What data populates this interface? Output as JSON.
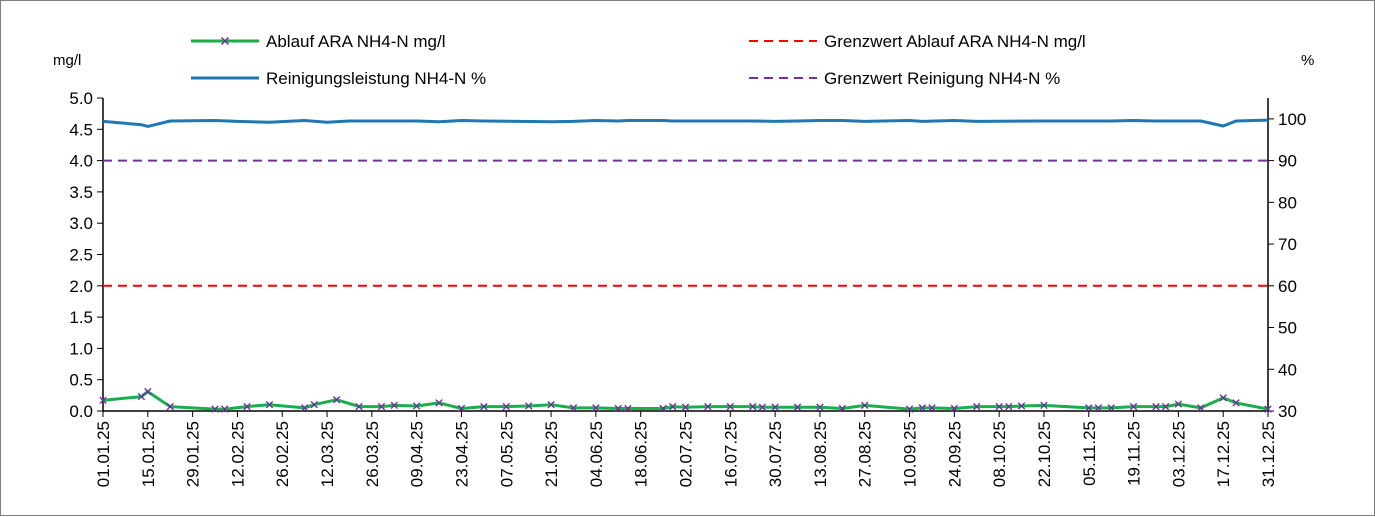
{
  "chart_data": {
    "type": "line",
    "title": "",
    "left_axis": {
      "label": "mg/l",
      "ylim": [
        0,
        5
      ],
      "ticks": [
        "0.0",
        "0.5",
        "1.0",
        "1.5",
        "2.0",
        "2.5",
        "3.0",
        "3.5",
        "4.0",
        "4.5",
        "5.0"
      ]
    },
    "right_axis": {
      "label": "%",
      "ylim": [
        30,
        105
      ],
      "ticks": [
        "30",
        "40",
        "50",
        "60",
        "70",
        "80",
        "90",
        "100"
      ]
    },
    "x_tick_labels": [
      "01.01.25",
      "15.01.25",
      "29.01.25",
      "12.02.25",
      "26.02.25",
      "12.03.25",
      "26.03.25",
      "09.04.25",
      "23.04.25",
      "07.05.25",
      "21.05.25",
      "04.06.25",
      "18.06.25",
      "02.07.25",
      "16.07.25",
      "30.07.25",
      "13.08.25",
      "27.08.25",
      "10.09.25",
      "24.09.25",
      "08.10.25",
      "22.10.25",
      "05.11.25",
      "19.11.25",
      "03.12.25",
      "17.12.25",
      "31.12.25"
    ],
    "x_range": [
      "01.01.25",
      "31.12.25"
    ],
    "grid": false,
    "legend_placement": "top",
    "series": [
      {
        "name": "Ablauf ARA NH4-N mg/l",
        "axis": "left",
        "color": "#1aae4c",
        "marker_color": "#7030a0",
        "marker": "x",
        "x": [
          "01.01.25",
          "13.01.25",
          "15.01.25",
          "22.01.25",
          "05.02.25",
          "08.02.25",
          "15.02.25",
          "22.02.25",
          "05.03.25",
          "08.03.25",
          "15.03.25",
          "22.03.25",
          "29.03.25",
          "02.04.25",
          "09.04.25",
          "16.04.25",
          "23.04.25",
          "30.04.25",
          "07.05.25",
          "14.05.25",
          "21.05.25",
          "28.05.25",
          "04.06.25",
          "11.06.25",
          "14.06.25",
          "25.06.25",
          "28.06.25",
          "02.07.25",
          "09.07.25",
          "16.07.25",
          "23.07.25",
          "26.07.25",
          "30.07.25",
          "06.08.25",
          "13.08.25",
          "20.08.25",
          "27.08.25",
          "10.09.25",
          "14.09.25",
          "17.09.25",
          "24.09.25",
          "01.10.25",
          "08.10.25",
          "11.10.25",
          "15.10.25",
          "22.10.25",
          "05.11.25",
          "08.11.25",
          "12.11.25",
          "19.11.25",
          "26.11.25",
          "29.11.25",
          "03.12.25",
          "10.12.25",
          "17.12.25",
          "21.12.25",
          "31.12.25"
        ],
        "values": [
          0.17,
          0.23,
          0.31,
          0.07,
          0.03,
          0.03,
          0.07,
          0.1,
          0.05,
          0.1,
          0.18,
          0.07,
          0.07,
          0.09,
          0.08,
          0.13,
          0.04,
          0.07,
          0.07,
          0.08,
          0.1,
          0.05,
          0.05,
          0.04,
          0.04,
          0.04,
          0.07,
          0.06,
          0.07,
          0.07,
          0.07,
          0.06,
          0.06,
          0.06,
          0.06,
          0.04,
          0.09,
          0.03,
          0.05,
          0.05,
          0.04,
          0.07,
          0.07,
          0.07,
          0.08,
          0.09,
          0.05,
          0.05,
          0.05,
          0.07,
          0.07,
          0.07,
          0.11,
          0.05,
          0.21,
          0.13,
          0.03
        ]
      },
      {
        "name": "Reinigungsleistung NH4-N %",
        "axis": "right",
        "color": "#1f77b4",
        "x": [
          "01.01.25",
          "13.01.25",
          "15.01.25",
          "22.01.25",
          "05.02.25",
          "12.02.25",
          "22.02.25",
          "05.03.25",
          "12.03.25",
          "19.03.25",
          "09.04.25",
          "16.04.25",
          "23.04.25",
          "30.04.25",
          "21.05.25",
          "28.05.25",
          "04.06.25",
          "11.06.25",
          "14.06.25",
          "25.06.25",
          "28.06.25",
          "02.07.25",
          "16.07.25",
          "23.07.25",
          "30.07.25",
          "06.08.25",
          "13.08.25",
          "20.08.25",
          "27.08.25",
          "10.09.25",
          "14.09.25",
          "24.09.25",
          "01.10.25",
          "22.10.25",
          "05.11.25",
          "12.11.25",
          "19.11.25",
          "26.11.25",
          "03.12.25",
          "10.12.25",
          "17.12.25",
          "21.12.25",
          "31.12.25"
        ],
        "values": [
          99.4,
          98.6,
          98.2,
          99.5,
          99.6,
          99.4,
          99.2,
          99.6,
          99.2,
          99.5,
          99.5,
          99.3,
          99.6,
          99.5,
          99.3,
          99.4,
          99.6,
          99.5,
          99.6,
          99.6,
          99.5,
          99.5,
          99.5,
          99.5,
          99.4,
          99.5,
          99.6,
          99.6,
          99.4,
          99.6,
          99.4,
          99.6,
          99.4,
          99.5,
          99.5,
          99.5,
          99.6,
          99.5,
          99.5,
          99.5,
          98.3,
          99.5,
          99.7
        ]
      },
      {
        "name": "Grenzwert Ablauf ARA NH4-N mg/l",
        "axis": "left",
        "color": "#ff0000",
        "style": "dashed",
        "x": [
          "01.01.25",
          "31.12.25"
        ],
        "values": [
          2.0,
          2.0
        ]
      },
      {
        "name": "Grenzwert Reinigung NH4-N %",
        "axis": "right",
        "color": "#7030a0",
        "style": "dashed",
        "x": [
          "01.01.25",
          "31.12.25"
        ],
        "values": [
          90,
          90
        ]
      }
    ]
  }
}
